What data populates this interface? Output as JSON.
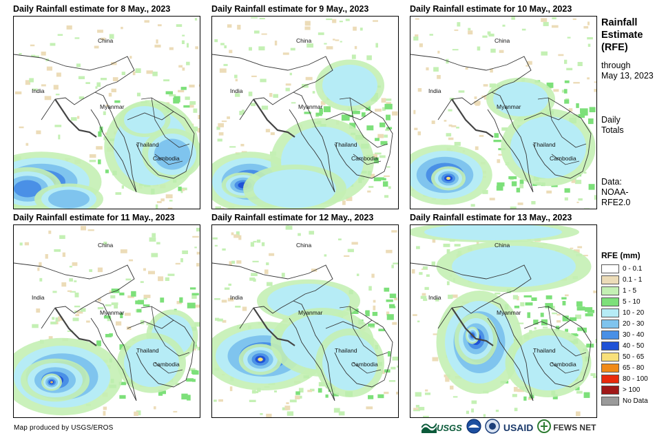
{
  "panels": [
    {
      "title": "Daily Rainfall estimate for 8 May., 2023",
      "intensity": 2
    },
    {
      "title": "Daily Rainfall estimate for 9 May., 2023",
      "intensity": 2
    },
    {
      "title": "Daily Rainfall estimate for 10 May., 2023",
      "intensity": 2
    },
    {
      "title": "Daily Rainfall estimate for 11 May., 2023",
      "intensity": 3
    },
    {
      "title": "Daily Rainfall estimate for 12 May., 2023",
      "intensity": 3
    },
    {
      "title": "Daily Rainfall estimate for 13 May., 2023",
      "intensity": 3
    }
  ],
  "map_labels": {
    "china": "China",
    "india": "India",
    "myanmar": "Myanmar",
    "thailand": "Thailand",
    "cambodia": "Cambodia"
  },
  "sidebar": {
    "heading_line1": "Rainfall",
    "heading_line2": "Estimate",
    "heading_line3": "(RFE)",
    "through_line1": "through",
    "through_line2": "May 13, 2023",
    "daily_line1": "Daily",
    "daily_line2": "Totals",
    "data_line1": "Data:",
    "data_line2": "NOAA-",
    "data_line3": "RFE2.0"
  },
  "legend": {
    "title": "RFE (mm)",
    "items": [
      {
        "label": "0 - 0.1",
        "color": "#ffffff"
      },
      {
        "label": "0.1 - 1",
        "color": "#ecdcb8"
      },
      {
        "label": "1 - 5",
        "color": "#c4f0b4"
      },
      {
        "label": "5 - 10",
        "color": "#7de07a"
      },
      {
        "label": "10 - 20",
        "color": "#b6ecf6"
      },
      {
        "label": "20 - 30",
        "color": "#7fc4ee"
      },
      {
        "label": "30 - 40",
        "color": "#4a90e6"
      },
      {
        "label": "40 - 50",
        "color": "#1f52d6"
      },
      {
        "label": "50 - 65",
        "color": "#f8e07a"
      },
      {
        "label": "65 - 80",
        "color": "#f08a18"
      },
      {
        "label": "80 - 100",
        "color": "#e82a0c"
      },
      {
        "label": "> 100",
        "color": "#a01818"
      },
      {
        "label": "No Data",
        "color": "#9a9a9a"
      }
    ]
  },
  "credit": "Map produced by USGS/EROS",
  "logos": {
    "usgs": "USGS",
    "usaid": "USAID",
    "fewsnet": "FEWS NET"
  }
}
